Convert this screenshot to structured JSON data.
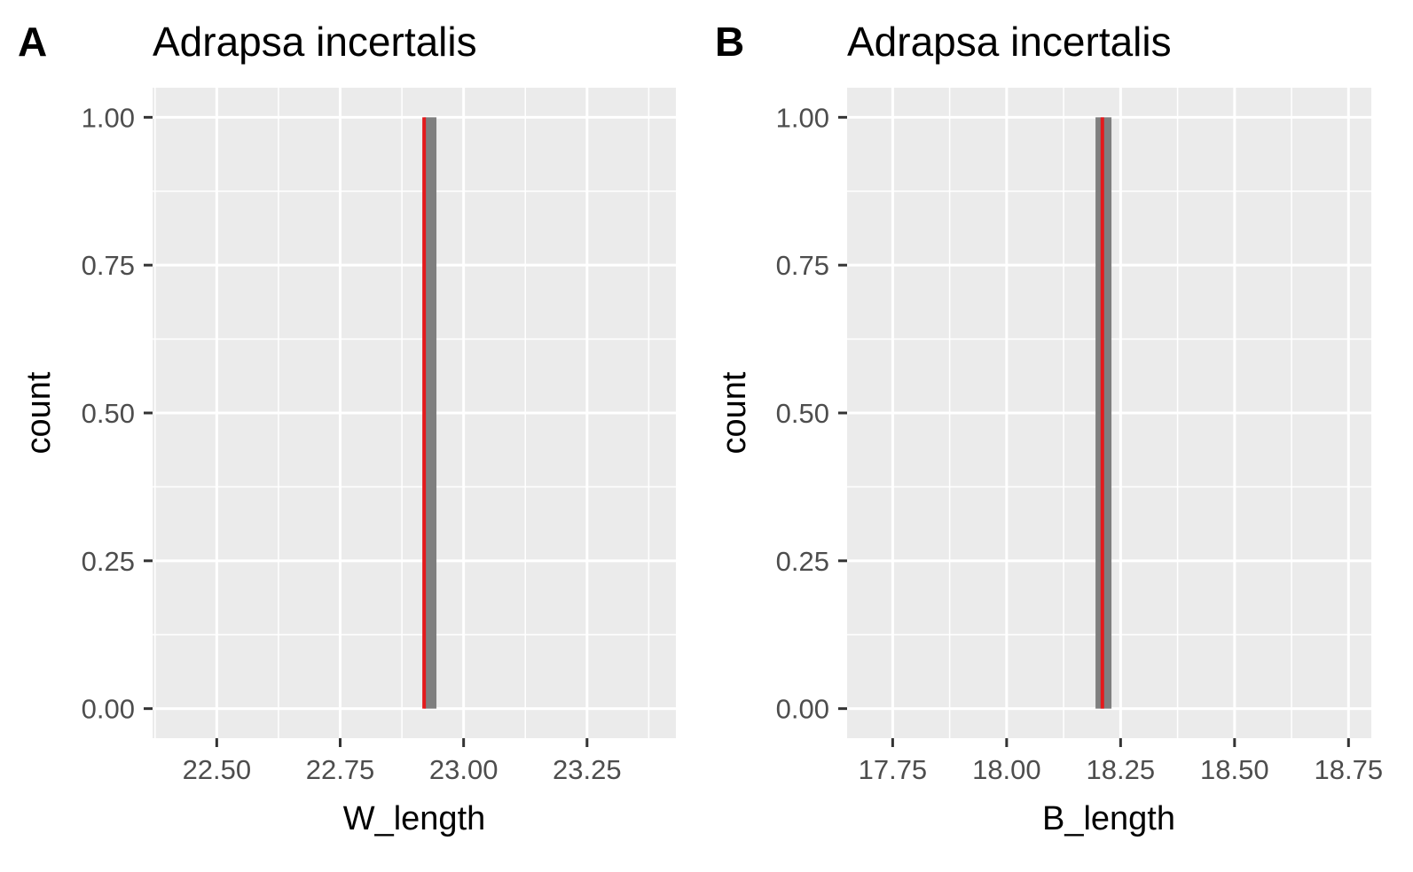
{
  "chart_data": [
    {
      "type": "bar",
      "panel_label": "A",
      "title": "Adrapsa incertalis",
      "xlabel": "W_length",
      "ylabel": "count",
      "xlim": [
        22.37,
        23.43
      ],
      "ylim": [
        -0.05,
        1.05
      ],
      "x_ticks": [
        22.5,
        22.75,
        23.0,
        23.25
      ],
      "x_tick_labels": [
        "22.50",
        "22.75",
        "23.00",
        "23.25"
      ],
      "y_ticks": [
        0,
        0.25,
        0.5,
        0.75,
        1
      ],
      "y_tick_labels": [
        "0.00",
        "0.25",
        "0.50",
        "0.75",
        "1.00"
      ],
      "bars": [
        {
          "x_start": 22.92,
          "x_end": 22.945,
          "count": 1
        }
      ],
      "reference_line": {
        "x": 22.92,
        "color": "#e41a1c"
      },
      "grid": true,
      "panel_background": "#ebebeb",
      "bar_color": "#7f7f7f"
    },
    {
      "type": "bar",
      "panel_label": "B",
      "title": "Adrapsa incertalis",
      "xlabel": "B_length",
      "ylabel": "count",
      "xlim": [
        17.65,
        18.8
      ],
      "ylim": [
        -0.05,
        1.05
      ],
      "x_ticks": [
        17.75,
        18.0,
        18.25,
        18.5,
        18.75
      ],
      "x_tick_labels": [
        "17.75",
        "18.00",
        "18.25",
        "18.50",
        "18.75"
      ],
      "y_ticks": [
        0,
        0.25,
        0.5,
        0.75,
        1
      ],
      "y_tick_labels": [
        "0.00",
        "0.25",
        "0.50",
        "0.75",
        "1.00"
      ],
      "bars": [
        {
          "x_start": 18.195,
          "x_end": 18.23,
          "count": 1
        }
      ],
      "reference_line": {
        "x": 18.21,
        "color": "#e41a1c"
      },
      "grid": true,
      "panel_background": "#ebebeb",
      "bar_color": "#7f7f7f"
    }
  ]
}
